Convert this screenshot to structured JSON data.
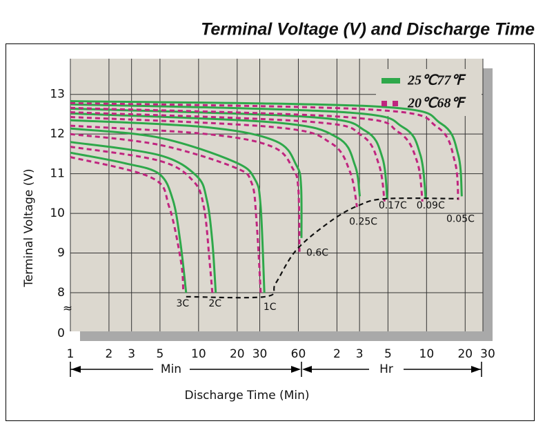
{
  "chart_data": {
    "type": "line",
    "title": "Terminal Voltage (V) and Discharge Time",
    "xlabel": "Discharge Time (Min)",
    "ylabel": "Terminal Voltage (V)",
    "x_units": [
      "Min",
      "Hr"
    ],
    "xscale": "log",
    "xlim": [
      1,
      1800
    ],
    "xticks": [
      1,
      2,
      3,
      5,
      10,
      20,
      30,
      60,
      {
        "value": 120,
        "label": "2"
      },
      {
        "value": 180,
        "label": "3"
      },
      {
        "value": 300,
        "label": "5"
      },
      {
        "value": 600,
        "label": "10"
      },
      {
        "value": 1200,
        "label": "20"
      },
      {
        "value": 1800,
        "label": "30"
      }
    ],
    "ylim": [
      0,
      13.9
    ],
    "y_break": [
      0,
      7.6
    ],
    "y_break_label": "≈",
    "yticks": [
      0,
      8,
      9,
      10,
      11,
      12,
      13
    ],
    "grid": true,
    "legend": "upper right",
    "rate_labels": [
      "3C",
      "2C",
      "1C",
      "0.6C",
      "0.25C",
      "0.17C",
      "0.09C",
      "0.05C"
    ],
    "series": [
      {
        "name": "25℃77℉",
        "color": "#2ea84a",
        "dash": false,
        "curves": [
          {
            "x": [
              1,
              2.6,
              4.9,
              6.3,
              7.2,
              8.0
            ],
            "values": [
              11.53,
              11.27,
              11.0,
              10.34,
              9.29,
              8.0
            ]
          },
          {
            "x": [
              1,
              4.9,
              9.6,
              11.6,
              12.8,
              13.6
            ],
            "values": [
              11.8,
              11.47,
              10.95,
              10.34,
              9.29,
              8.0
            ]
          },
          {
            "x": [
              1,
              4.9,
              19,
              27.5,
              30.5,
              32.6
            ],
            "values": [
              12.14,
              11.91,
              11.3,
              10.86,
              10.16,
              8.0
            ]
          },
          {
            "x": [
              1,
              11.6,
              40,
              58,
              63,
              63.5
            ],
            "values": [
              12.35,
              12.17,
              11.82,
              11.21,
              10.69,
              9.38
            ]
          },
          {
            "x": [
              1,
              40,
              121,
              166,
              181
            ],
            "values": [
              12.52,
              12.29,
              11.91,
              11.21,
              10.43
            ]
          },
          {
            "x": [
              1,
              74,
              200,
              272,
              296
            ],
            "values": [
              12.64,
              12.43,
              12.08,
              11.39,
              10.37
            ]
          },
          {
            "x": [
              1,
              138,
              394,
              537,
              592
            ],
            "values": [
              12.75,
              12.55,
              12.17,
              11.47,
              10.37
            ]
          },
          {
            "x": [
              1,
              256,
              781,
              1060,
              1130
            ],
            "values": [
              12.83,
              12.69,
              12.26,
              11.47,
              10.43
            ]
          }
        ]
      },
      {
        "name": "20℃68℉",
        "color": "#c0257f",
        "dash": true,
        "curves": [
          {
            "x": [
              1,
              4.3,
              5.9,
              7.3,
              7.6
            ],
            "values": [
              11.42,
              10.9,
              10.16,
              8.77,
              8.0
            ]
          },
          {
            "x": [
              1,
              4.9,
              9.0,
              11.0,
              12.2,
              12.8
            ],
            "values": [
              11.68,
              11.33,
              10.83,
              10.16,
              8.77,
              8.0
            ]
          },
          {
            "x": [
              1,
              4.9,
              19,
              25.9,
              28.3,
              30.5
            ],
            "values": [
              12.0,
              11.73,
              11.16,
              10.77,
              9.81,
              8.0
            ]
          },
          {
            "x": [
              1,
              11.6,
              37.6,
              54.5,
              60,
              61.2
            ],
            "values": [
              12.21,
              12.0,
              11.68,
              11.12,
              10.6,
              9.03
            ]
          },
          {
            "x": [
              1,
              40,
              108,
              152,
              172
            ],
            "values": [
              12.43,
              12.17,
              11.77,
              11.04,
              10.16
            ]
          },
          {
            "x": [
              1,
              74,
              188,
              256,
              282
            ],
            "values": [
              12.55,
              12.31,
              11.96,
              11.21,
              10.3
            ]
          },
          {
            "x": [
              1,
              138,
              362,
              507,
              557
            ],
            "values": [
              12.66,
              12.43,
              12.05,
              11.3,
              10.3
            ]
          },
          {
            "x": [
              1,
              240,
              730,
              998,
              1060
            ],
            "values": [
              12.78,
              12.61,
              12.17,
              11.3,
              10.34
            ]
          }
        ]
      }
    ],
    "end_voltage": {
      "color": "#111111",
      "x": [
        8,
        33,
        40,
        58,
        108,
        177,
        290,
        1060
      ],
      "values": [
        7.9,
        7.9,
        8.24,
        9.08,
        9.81,
        10.2,
        10.37,
        10.37
      ]
    }
  }
}
